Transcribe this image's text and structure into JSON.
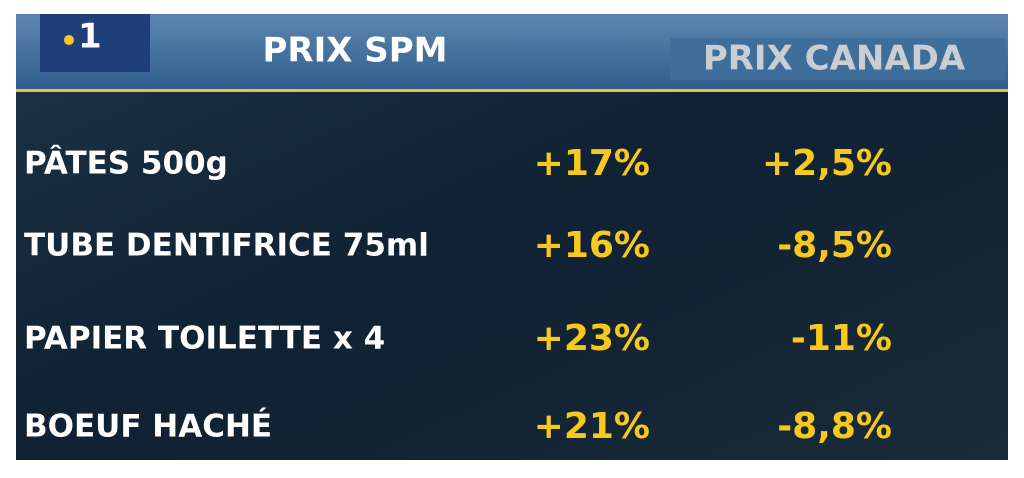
{
  "header": {
    "logo": "1",
    "columns": [
      "PRIX SPM",
      "PRIX CANADA"
    ]
  },
  "table": {
    "rows": [
      [
        "PÂTES 500g",
        "+17%",
        "+2,5%"
      ],
      [
        "TUBE DENTIFRICE 75ml",
        "+16%",
        "-8,5%"
      ],
      [
        "PAPIER TOILETTE x 4",
        "+23%",
        "-11%"
      ],
      [
        "BOEUF HACHÉ",
        "+21%",
        "-8,8%"
      ]
    ]
  }
}
